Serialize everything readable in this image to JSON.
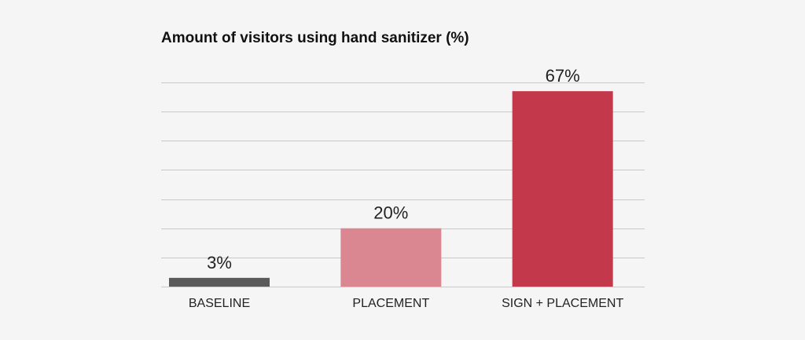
{
  "chart_data": {
    "type": "bar",
    "title": "Amount of visitors using hand sanitizer (%)",
    "categories": [
      "BASELINE",
      "PLACEMENT",
      "SIGN + PLACEMENT"
    ],
    "values": [
      3,
      20,
      67
    ],
    "value_labels": [
      "3%",
      "20%",
      "67%"
    ],
    "bar_colors": [
      "#5a5a5a",
      "#db8792",
      "#c4384b"
    ],
    "gridline_color": "#c9c9c9",
    "ylim": [
      0,
      70
    ],
    "grid": true,
    "legend": "none"
  }
}
